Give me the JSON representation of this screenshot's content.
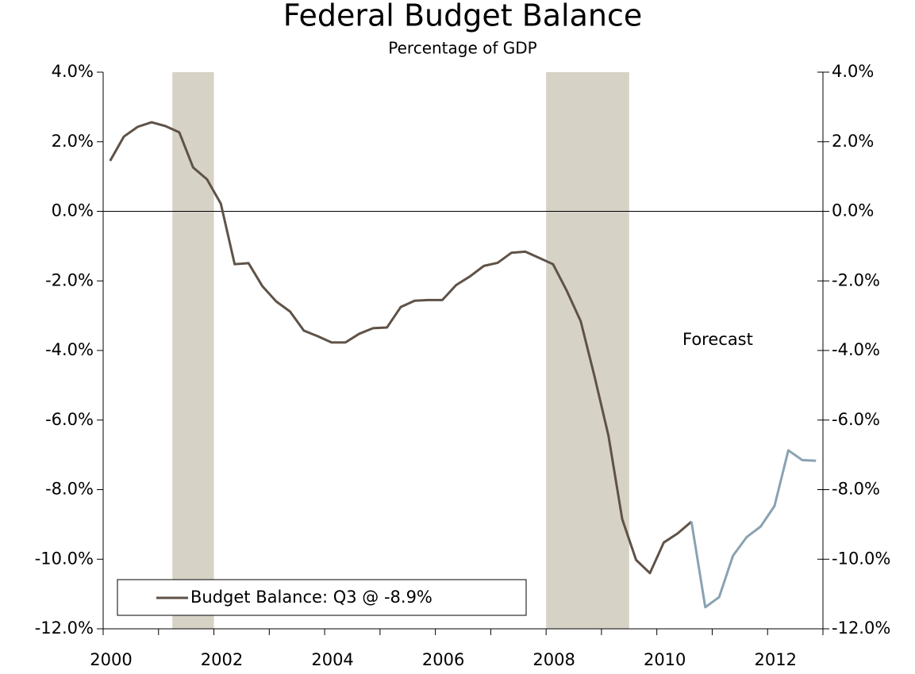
{
  "chart_data": {
    "type": "line",
    "title": "Federal Budget Balance",
    "subtitle": "Percentage of GDP",
    "annotations": [
      {
        "text": "Forecast",
        "x": 2011.1,
        "y": -3.7
      }
    ],
    "x": [
      2000.125,
      2000.375,
      2000.625,
      2000.875,
      2001.125,
      2001.375,
      2001.625,
      2001.875,
      2002.125,
      2002.375,
      2002.625,
      2002.875,
      2003.125,
      2003.375,
      2003.625,
      2003.875,
      2004.125,
      2004.375,
      2004.625,
      2004.875,
      2005.125,
      2005.375,
      2005.625,
      2005.875,
      2006.125,
      2006.375,
      2006.625,
      2006.875,
      2007.125,
      2007.375,
      2007.625,
      2007.875,
      2008.125,
      2008.375,
      2008.625,
      2008.875,
      2009.125,
      2009.375,
      2009.625,
      2009.875,
      2010.125,
      2010.375,
      2010.625,
      2010.875,
      2011.125,
      2011.375,
      2011.625,
      2011.875,
      2012.125,
      2012.375,
      2012.625,
      2012.875
    ],
    "series": [
      {
        "name": "Budget Balance: Q3 @ -8.9%",
        "color": "#5f5247",
        "values": [
          1.45,
          2.15,
          2.43,
          2.56,
          2.45,
          2.27,
          1.26,
          0.92,
          0.22,
          -1.52,
          -1.49,
          -2.15,
          -2.59,
          -2.88,
          -3.43,
          -3.59,
          -3.77,
          -3.77,
          -3.52,
          -3.36,
          -3.34,
          -2.75,
          -2.57,
          -2.55,
          -2.55,
          -2.12,
          -1.87,
          -1.57,
          -1.48,
          -1.19,
          -1.16,
          -1.34,
          -1.52,
          -2.29,
          -3.16,
          -4.75,
          -6.44,
          -8.85,
          -10.02,
          -10.4,
          -9.52,
          -9.26,
          -8.92,
          null,
          null,
          null,
          null,
          null,
          null,
          null,
          null,
          null
        ]
      },
      {
        "color": "#8aa2b2",
        "values": [
          null,
          null,
          null,
          null,
          null,
          null,
          null,
          null,
          null,
          null,
          null,
          null,
          null,
          null,
          null,
          null,
          null,
          null,
          null,
          null,
          null,
          null,
          null,
          null,
          null,
          null,
          null,
          null,
          null,
          null,
          null,
          null,
          null,
          null,
          null,
          null,
          null,
          null,
          null,
          null,
          null,
          null,
          -8.92,
          -11.38,
          -11.09,
          -9.9,
          -9.36,
          -9.06,
          -8.47,
          -6.87,
          -7.15,
          -7.17
        ]
      }
    ],
    "shaded_periods": [
      [
        2001.25,
        2002.0
      ],
      [
        2008.0,
        2009.5
      ]
    ],
    "shade_color": "#d6d2c6",
    "xlim": [
      2000,
      2013
    ],
    "xticks": [
      2000,
      2002,
      2004,
      2006,
      2008,
      2010,
      2012
    ],
    "xminorticks": [
      2001,
      2003,
      2005,
      2007,
      2009,
      2011,
      2013
    ],
    "ylim": [
      -12,
      4
    ],
    "yticks": [
      {
        "value": 4,
        "label": "4.0%"
      },
      {
        "value": 2,
        "label": "2.0%"
      },
      {
        "value": 0,
        "label": "0.0%"
      },
      {
        "value": -2,
        "label": "-2.0%"
      },
      {
        "value": -4,
        "label": "-4.0%"
      },
      {
        "value": -6,
        "label": "-6.0%"
      },
      {
        "value": -8,
        "label": "-8.0%"
      },
      {
        "value": -10,
        "label": "-10.0%"
      },
      {
        "value": -12,
        "label": "-12.0%"
      }
    ],
    "legend": "lower left"
  }
}
